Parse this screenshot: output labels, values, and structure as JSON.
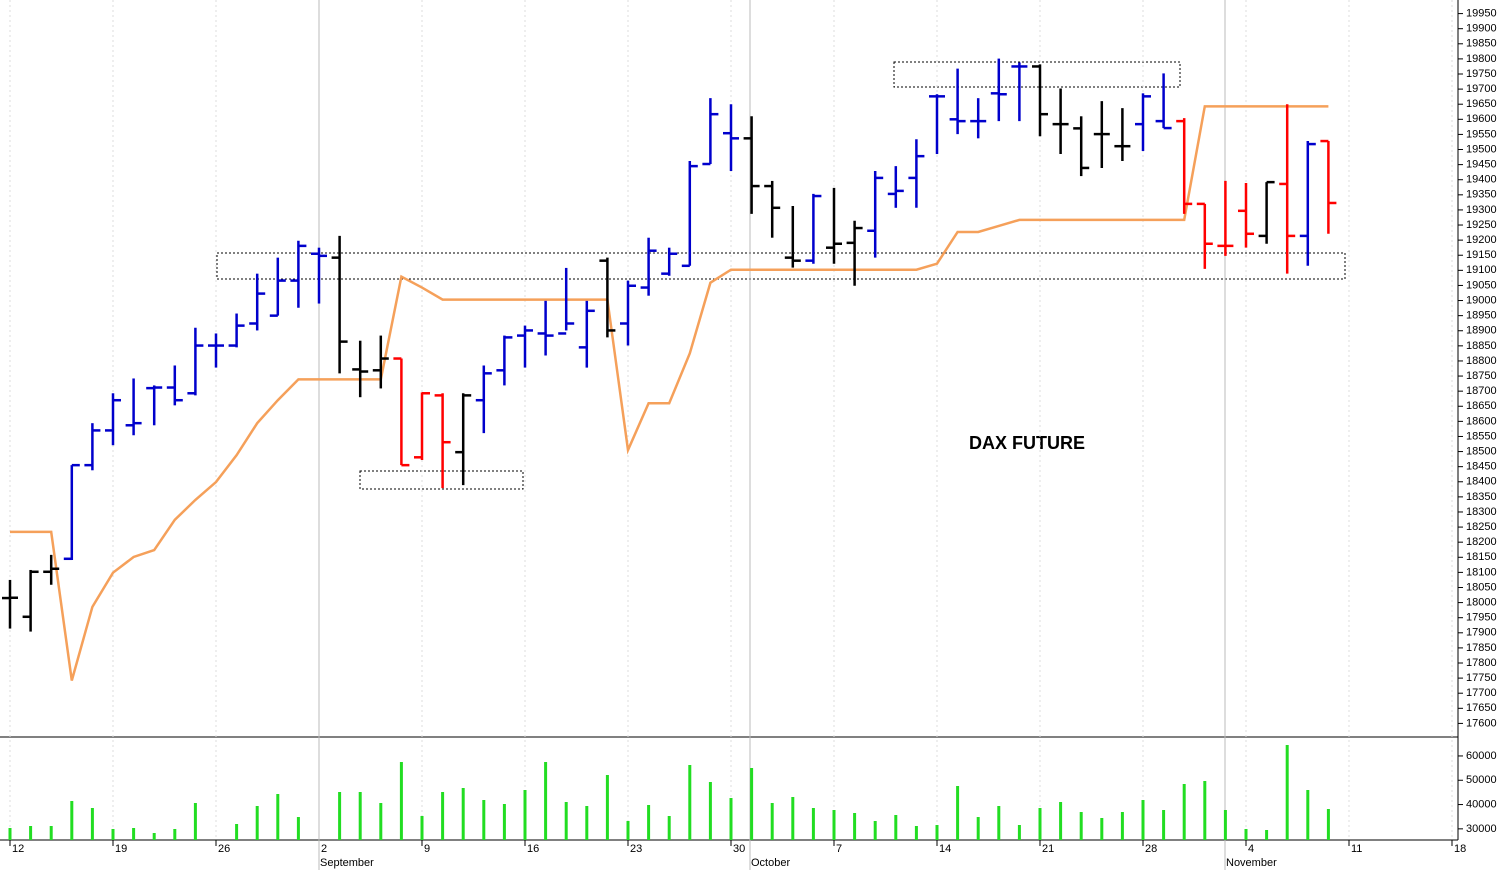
{
  "chart_data": [
    {
      "type": "ohlc",
      "title": "DAX FUTURE",
      "categories": [
        "12",
        null,
        null,
        null,
        null,
        "19",
        null,
        null,
        null,
        null,
        "26",
        null,
        null,
        null,
        null,
        "2",
        null,
        null,
        null,
        null,
        "9",
        null,
        null,
        null,
        null,
        "16",
        null,
        null,
        null,
        null,
        "23",
        null,
        null,
        null,
        null,
        "30",
        null,
        null,
        null,
        null,
        "7",
        null,
        null,
        null,
        null,
        "14",
        null,
        null,
        null,
        null,
        "21",
        null,
        null,
        null,
        null,
        "28",
        null,
        null,
        null,
        null,
        "4",
        null,
        null,
        null,
        null,
        "11",
        null,
        null,
        null,
        null,
        "18"
      ],
      "months": [
        "September",
        "October",
        "November"
      ],
      "open": [
        18015,
        17953,
        18102,
        18145,
        18455,
        18570,
        18587,
        18710,
        18712,
        18693,
        18851,
        18851,
        18924,
        18950,
        19066,
        19155,
        19142,
        18772,
        18769,
        18808,
        18481,
        18686,
        18498,
        18670,
        18769,
        18884,
        18891,
        18891,
        18845,
        19132,
        18924,
        19043,
        19089,
        19115,
        19452,
        19554,
        19537,
        19379,
        19142,
        19132,
        19175,
        19191,
        19231,
        19353,
        19406,
        19676,
        19600,
        19594,
        19686,
        19775,
        19775,
        19584,
        19570,
        19551,
        19511,
        19584,
        19594,
        19594,
        19320,
        19181,
        19297,
        19214,
        19386,
        19214,
        19528,
        null,
        null,
        null,
        null,
        null,
        null
      ],
      "high": [
        18075,
        18108,
        18158,
        18455,
        18594,
        18693,
        18742,
        18719,
        18785,
        18910,
        18891,
        18957,
        19089,
        19142,
        19198,
        19175,
        19214,
        18867,
        18884,
        18808,
        18696,
        18693,
        18693,
        18785,
        18884,
        18917,
        18999,
        19108,
        18999,
        19142,
        19066,
        19208,
        19175,
        19462,
        19670,
        19650,
        19610,
        19396,
        19313,
        19353,
        19373,
        19264,
        19429,
        19445,
        19534,
        19683,
        19768,
        19670,
        19801,
        19788,
        19782,
        19702,
        19610,
        19660,
        19637,
        19686,
        19752,
        19604,
        19320,
        19396,
        19389,
        19392,
        19650,
        19528,
        19528,
        null,
        null,
        null,
        null,
        null,
        null
      ],
      "low": [
        17914,
        17904,
        18059,
        18141,
        18438,
        18521,
        18554,
        18587,
        18653,
        18686,
        18778,
        18845,
        18901,
        18950,
        18976,
        18990,
        18759,
        18680,
        18709,
        18455,
        18472,
        18379,
        18389,
        18561,
        18719,
        18778,
        18818,
        18901,
        18778,
        18878,
        18851,
        19016,
        19082,
        19115,
        19452,
        19429,
        19287,
        19208,
        19109,
        19122,
        19122,
        19049,
        19142,
        19307,
        19307,
        19485,
        19551,
        19537,
        19594,
        19594,
        19544,
        19485,
        19412,
        19439,
        19462,
        19495,
        19571,
        19287,
        19105,
        19148,
        19175,
        19188,
        19089,
        19115,
        19221,
        null,
        null,
        null,
        null,
        null,
        null
      ],
      "close": [
        18016,
        18102,
        18112,
        18455,
        18570,
        18670,
        18594,
        18712,
        18670,
        18851,
        18851,
        18917,
        19023,
        19066,
        19181,
        19148,
        18864,
        18765,
        18808,
        18455,
        18693,
        18531,
        18686,
        18759,
        18878,
        18901,
        18884,
        18924,
        18966,
        18901,
        19049,
        19165,
        19155,
        19445,
        19617,
        19537,
        19379,
        19307,
        19132,
        19346,
        19188,
        19240,
        19406,
        19363,
        19478,
        19676,
        19594,
        19594,
        19683,
        19775,
        19617,
        19584,
        19439,
        19551,
        19511,
        19676,
        19571,
        19320,
        19188,
        19181,
        19221,
        19392,
        19214,
        19518,
        19323,
        null,
        null,
        null,
        null,
        null,
        null
      ],
      "bar_colors": [
        "#000000",
        "#000000",
        "#000000",
        "#0000cc",
        "#0000cc",
        "#0000cc",
        "#0000cc",
        "#0000cc",
        "#0000cc",
        "#0000cc",
        "#0000cc",
        "#0000cc",
        "#0000cc",
        "#0000cc",
        "#0000cc",
        "#0000cc",
        "#000000",
        "#000000",
        "#000000",
        "#ff0000",
        "#ff0000",
        "#ff0000",
        "#000000",
        "#0000cc",
        "#0000cc",
        "#0000cc",
        "#0000cc",
        "#0000cc",
        "#0000cc",
        "#000000",
        "#0000cc",
        "#0000cc",
        "#0000cc",
        "#0000cc",
        "#0000cc",
        "#0000cc",
        "#000000",
        "#000000",
        "#000000",
        "#0000cc",
        "#000000",
        "#000000",
        "#0000cc",
        "#0000cc",
        "#0000cc",
        "#0000cc",
        "#0000cc",
        "#0000cc",
        "#0000cc",
        "#0000cc",
        "#000000",
        "#000000",
        "#000000",
        "#000000",
        "#000000",
        "#0000cc",
        "#0000cc",
        "#ff0000",
        "#ff0000",
        "#ff0000",
        "#ff0000",
        "#000000",
        "#ff0000",
        "#0000cc",
        "#ff0000",
        null,
        null,
        null,
        null,
        null,
        null
      ],
      "series": [
        {
          "color": "#f5a05a",
          "values": [
            18234,
            18234,
            18234,
            17742,
            17986,
            18099,
            18151,
            18174,
            18274,
            18340,
            18399,
            18488,
            18594,
            18670,
            18739,
            18739,
            18739,
            18739,
            18739,
            19079,
            19043,
            19003,
            19003,
            19003,
            19003,
            19003,
            19003,
            19003,
            19003,
            19003,
            18505,
            18660,
            18660,
            18825,
            19059,
            19102,
            19102,
            19102,
            19102,
            19102,
            19102,
            19102,
            19102,
            19102,
            19102,
            19122,
            19227,
            19227,
            19247,
            19267,
            19267,
            19267,
            19267,
            19267,
            19267,
            19267,
            19267,
            19267,
            19643,
            19643,
            19643,
            19643,
            19643,
            19643,
            19643,
            null,
            null,
            null,
            null,
            null,
            null
          ]
        }
      ],
      "ylim": [
        17555,
        19995
      ],
      "yticks": [
        17600,
        17650,
        17700,
        17750,
        17800,
        17850,
        17900,
        17950,
        18000,
        18050,
        18100,
        18150,
        18200,
        18250,
        18300,
        18350,
        18400,
        18450,
        18500,
        18550,
        18600,
        18650,
        18700,
        18750,
        18800,
        18850,
        18900,
        18950,
        19000,
        19050,
        19100,
        19150,
        19200,
        19250,
        19300,
        19350,
        19400,
        19450,
        19500,
        19550,
        19600,
        19650,
        19700,
        19750,
        19800,
        19850,
        19900,
        19950
      ]
    },
    {
      "type": "bar",
      "color": "#22dd22",
      "values": [
        30350,
        31170,
        31170,
        41460,
        38580,
        29940,
        30350,
        28290,
        29940,
        40640,
        25400,
        32000,
        39400,
        44340,
        34870,
        25400,
        45160,
        45160,
        40640,
        57510,
        35290,
        45160,
        46810,
        41870,
        40230,
        45990,
        57510,
        41050,
        39400,
        52160,
        33230,
        39810,
        35290,
        56280,
        49280,
        42700,
        55040,
        40640,
        43110,
        38580,
        37760,
        36520,
        33230,
        35700,
        31170,
        31580,
        47630,
        34870,
        39400,
        31580,
        38580,
        41050,
        36930,
        34470,
        36930,
        41870,
        37760,
        48460,
        49690,
        37760,
        29940,
        29530,
        64510,
        45990,
        38170,
        null,
        null,
        null,
        null,
        null,
        null
      ],
      "ylim": [
        25000,
        67800
      ],
      "yticks": [
        30000,
        40000,
        50000,
        60000
      ]
    }
  ]
}
